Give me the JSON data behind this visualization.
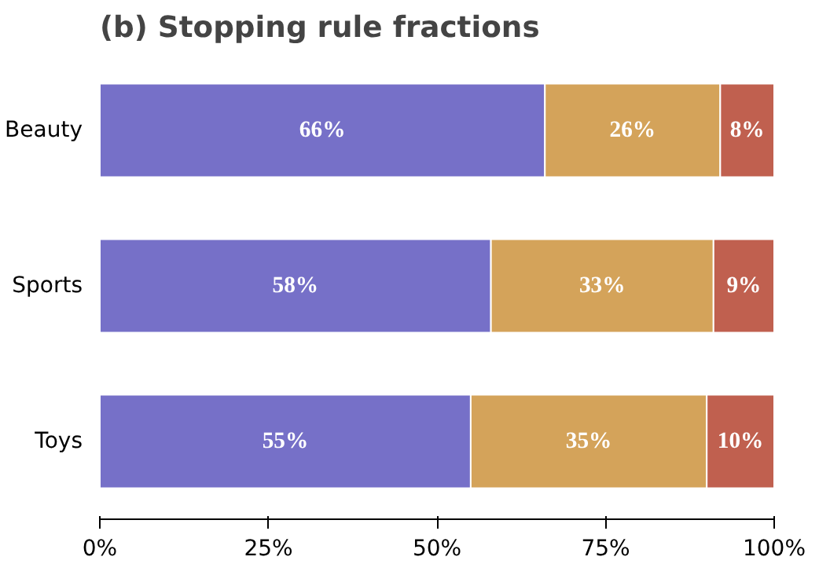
{
  "chart_data": {
    "type": "bar",
    "orientation": "horizontal",
    "stacked": true,
    "title": "(b) Stopping rule fractions",
    "categories": [
      "Beauty",
      "Sports",
      "Toys"
    ],
    "series": [
      {
        "color": "#7670c8",
        "values": [
          66,
          58,
          55
        ],
        "value_labels": [
          "66%",
          "58%",
          "55%"
        ]
      },
      {
        "color": "#d4a35a",
        "values": [
          26,
          33,
          35
        ],
        "value_labels": [
          "26%",
          "33%",
          "35%"
        ]
      },
      {
        "color": "#c0604f",
        "values": [
          8,
          9,
          10
        ],
        "value_labels": [
          "8%",
          "9%",
          "10%"
        ]
      }
    ],
    "xlim": [
      0,
      100
    ],
    "xticks": [
      {
        "value": 0,
        "label": "0%"
      },
      {
        "value": 25,
        "label": "25%"
      },
      {
        "value": 50,
        "label": "50%"
      },
      {
        "value": 75,
        "label": "75%"
      },
      {
        "value": 100,
        "label": "100%"
      }
    ],
    "grid": false
  }
}
